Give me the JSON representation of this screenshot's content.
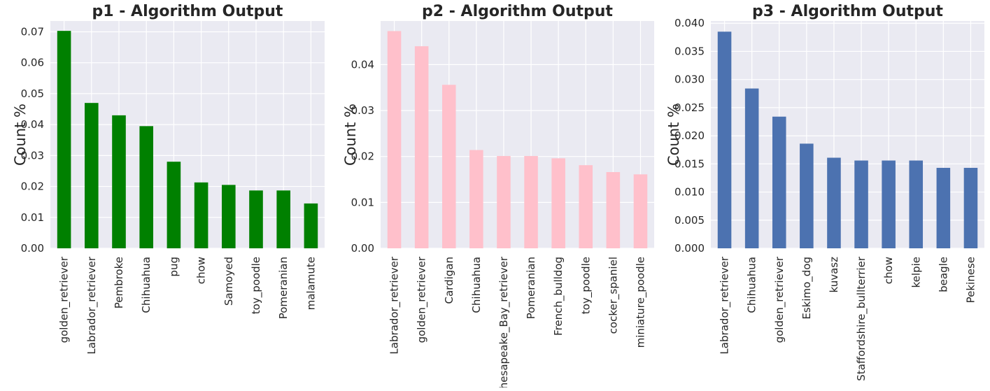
{
  "chart_data": [
    {
      "type": "bar",
      "title": "p1 - Algorithm Output",
      "xlabel": "",
      "ylabel": "Count %",
      "color": "#008000",
      "background": "#EAEAF2",
      "grid": true,
      "categories": [
        "golden_retriever",
        "Labrador_retriever",
        "Pembroke",
        "Chihuahua",
        "pug",
        "chow",
        "Samoyed",
        "toy_poodle",
        "Pomeranian",
        "malamute"
      ],
      "values": [
        0.0703,
        0.047,
        0.043,
        0.0395,
        0.028,
        0.0213,
        0.0205,
        0.0187,
        0.0187,
        0.0145
      ],
      "ylim": [
        0,
        0.0735
      ],
      "yticks": [
        0.0,
        0.01,
        0.02,
        0.03,
        0.04,
        0.05,
        0.06,
        0.07
      ],
      "ytick_labels": [
        "0.00",
        "0.01",
        "0.02",
        "0.03",
        "0.04",
        "0.05",
        "0.06",
        "0.07"
      ]
    },
    {
      "type": "bar",
      "title": "p2 - Algorithm Output",
      "xlabel": "",
      "ylabel": "Count %",
      "color": "#FFC0CB",
      "background": "#EAEAF2",
      "grid": true,
      "categories": [
        "Labrador_retriever",
        "golden_retriever",
        "Cardigan",
        "Chihuahua",
        "Chesapeake_Bay_retriever",
        "Pomeranian",
        "French_bulldog",
        "toy_poodle",
        "cocker_spaniel",
        "miniature_poodle"
      ],
      "values": [
        0.0473,
        0.044,
        0.0356,
        0.0214,
        0.0201,
        0.0201,
        0.0196,
        0.0181,
        0.0166,
        0.0161
      ],
      "ylim": [
        0,
        0.0495
      ],
      "yticks": [
        0.0,
        0.01,
        0.02,
        0.03,
        0.04
      ],
      "ytick_labels": [
        "0.00",
        "0.01",
        "0.02",
        "0.03",
        "0.04"
      ]
    },
    {
      "type": "bar",
      "title": "p3 - Algorithm Output",
      "xlabel": "",
      "ylabel": "Count %",
      "color": "#4C72B0",
      "background": "#EAEAF2",
      "grid": true,
      "categories": [
        "Labrador_retriever",
        "Chihuahua",
        "golden_retriever",
        "Eskimo_dog",
        "kuvasz",
        "Staffordshire_bullterrier",
        "chow",
        "kelpie",
        "beagle",
        "Pekinese"
      ],
      "values": [
        0.0385,
        0.0284,
        0.0234,
        0.0186,
        0.0161,
        0.0156,
        0.0156,
        0.0156,
        0.0143,
        0.0143
      ],
      "ylim": [
        0,
        0.0404
      ],
      "yticks": [
        0.0,
        0.005,
        0.01,
        0.015,
        0.02,
        0.025,
        0.03,
        0.035,
        0.04
      ],
      "ytick_labels": [
        "0.000",
        "0.005",
        "0.010",
        "0.015",
        "0.020",
        "0.025",
        "0.030",
        "0.035",
        "0.040"
      ]
    }
  ]
}
